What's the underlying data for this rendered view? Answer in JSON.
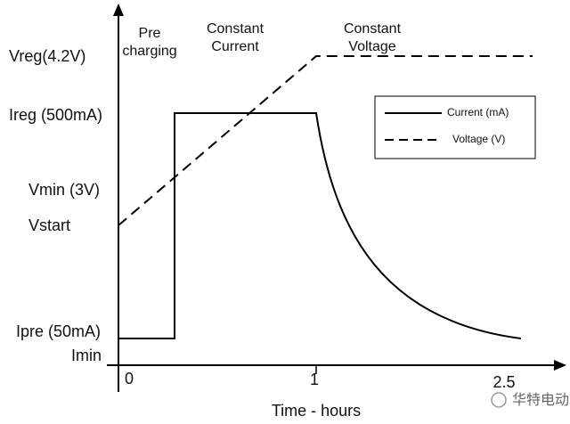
{
  "y_labels": [
    "Vreg(4.2V)",
    "Ireg (500mA)",
    "Vmin (3V)",
    "Vstart",
    "Ipre (50mA)",
    "Imin"
  ],
  "x_labels": [
    "0",
    "1",
    "2.5"
  ],
  "x_title": "Time - hours",
  "phases": [
    {
      "lines": [
        "Pre",
        "charging"
      ]
    },
    {
      "lines": [
        "Constant",
        "Current"
      ]
    },
    {
      "lines": [
        "Constant",
        "Voltage"
      ]
    }
  ],
  "legend": [
    "Current (mA)",
    "Voltage (V)"
  ],
  "watermark": "华特电动"
}
